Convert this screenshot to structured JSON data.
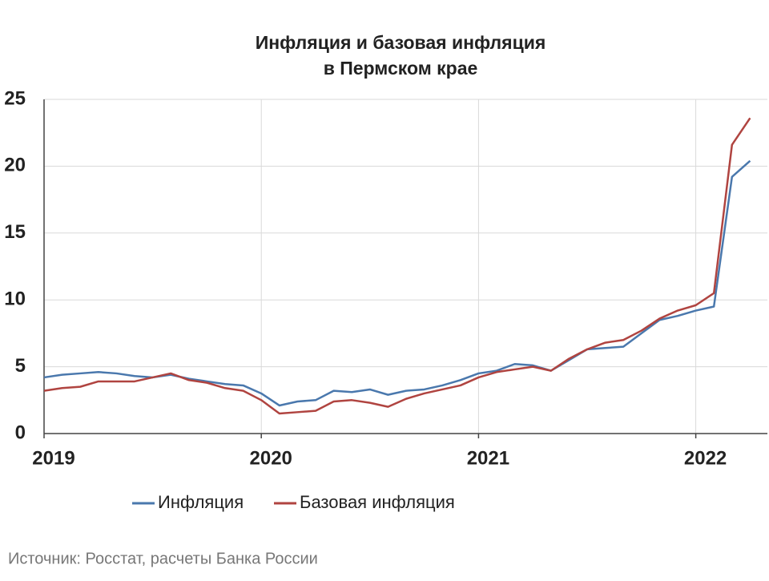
{
  "chart_data": {
    "type": "line",
    "title": "Инфляция и базовая инфляция",
    "subtitle": "в Пермском крае",
    "source": "Источник: Росстат, расчеты Банка России",
    "categories": [
      "2019",
      null,
      null,
      null,
      null,
      null,
      null,
      null,
      null,
      null,
      null,
      null,
      "2020",
      null,
      null,
      null,
      null,
      null,
      null,
      null,
      null,
      null,
      null,
      null,
      "2021",
      null,
      null,
      null,
      null,
      null,
      null,
      null,
      null,
      null,
      null,
      null,
      "2022",
      null,
      null,
      null
    ],
    "series": [
      {
        "name": "Инфляция",
        "color": "#4a78ad",
        "values": [
          4.2,
          4.4,
          4.5,
          4.6,
          4.5,
          4.3,
          4.2,
          4.4,
          4.1,
          3.9,
          3.7,
          3.6,
          3.0,
          2.1,
          2.4,
          2.5,
          3.2,
          3.1,
          3.3,
          2.9,
          3.2,
          3.3,
          3.6,
          4.0,
          4.5,
          4.7,
          5.2,
          5.1,
          4.7,
          5.5,
          6.3,
          6.4,
          6.5,
          7.5,
          8.5,
          8.8,
          9.2,
          9.5,
          19.2,
          20.4
        ]
      },
      {
        "name": "Базовая инфляция",
        "color": "#b04440",
        "values": [
          3.2,
          3.4,
          3.5,
          3.9,
          3.9,
          3.9,
          4.2,
          4.5,
          4.0,
          3.8,
          3.4,
          3.2,
          2.5,
          1.5,
          1.6,
          1.7,
          2.4,
          2.5,
          2.3,
          2.0,
          2.6,
          3.0,
          3.3,
          3.6,
          4.2,
          4.6,
          4.8,
          5.0,
          4.7,
          5.6,
          6.3,
          6.8,
          7.0,
          7.7,
          8.6,
          9.2,
          9.6,
          10.5,
          21.6,
          23.6
        ]
      }
    ],
    "ylim": [
      0,
      25
    ],
    "yticks": [
      0,
      5,
      10,
      15,
      20,
      25
    ],
    "grid": true,
    "legend": "bottom"
  }
}
